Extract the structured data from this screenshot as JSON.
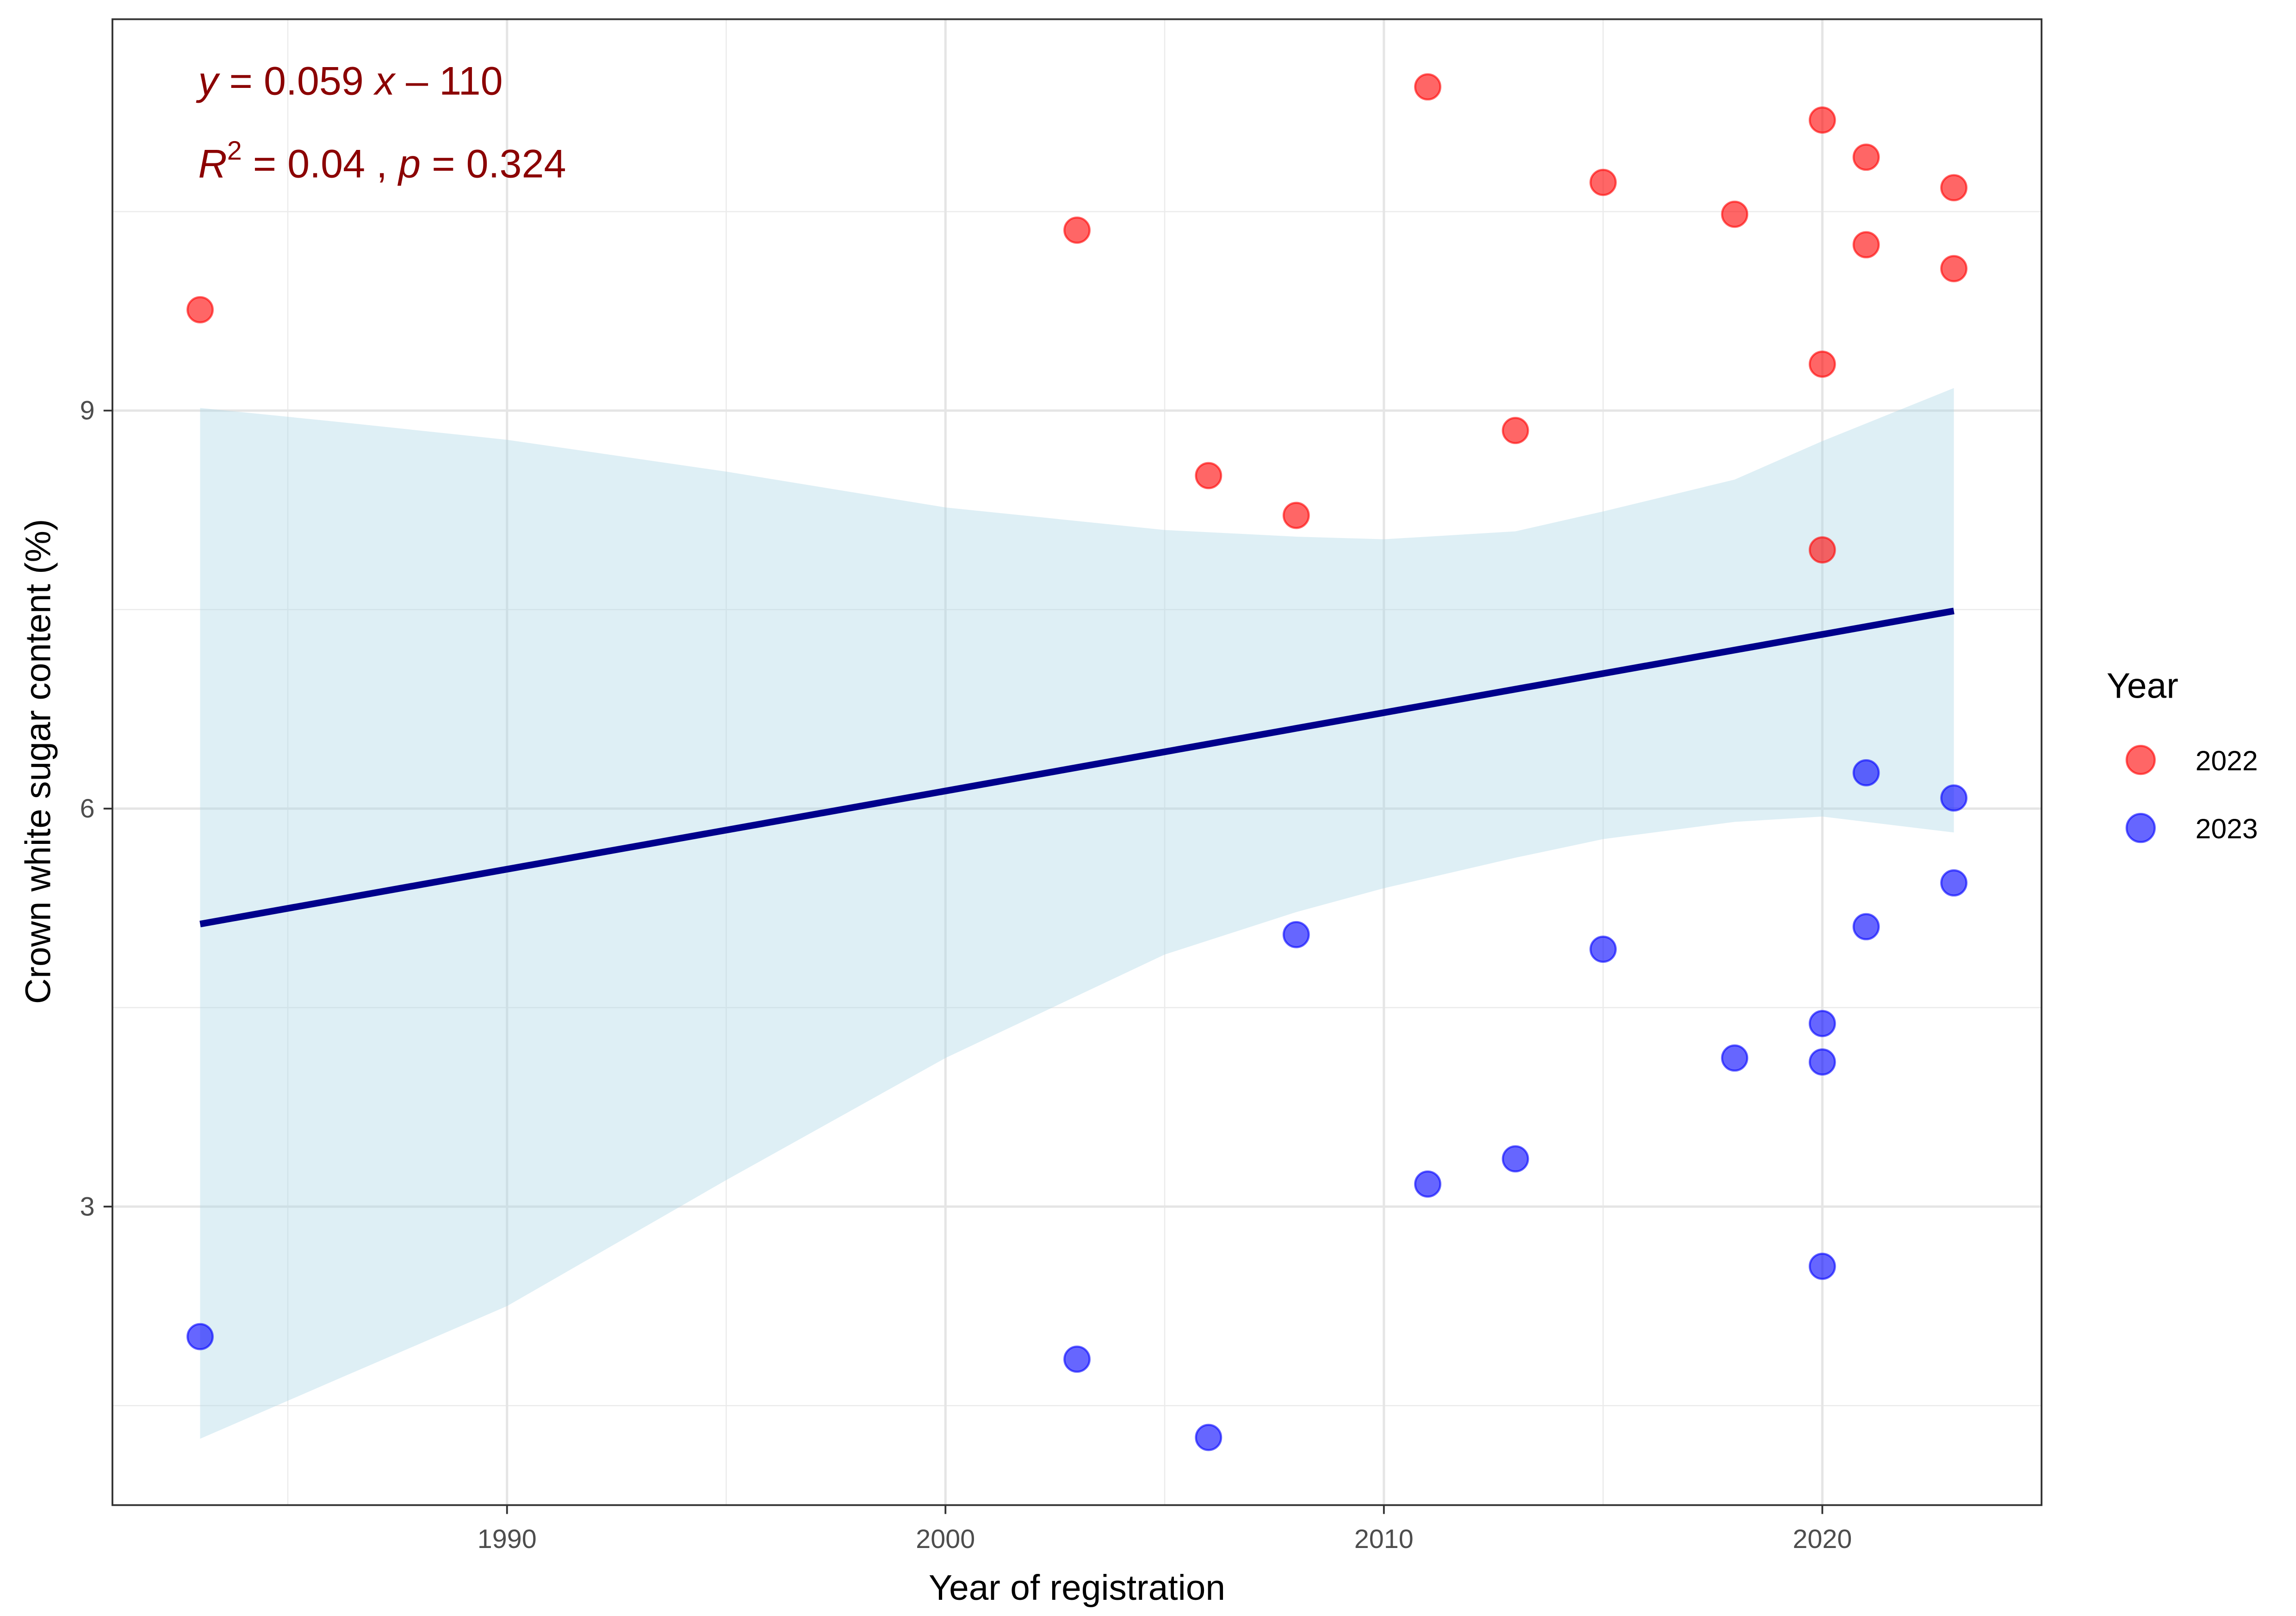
{
  "chart_data": {
    "type": "scatter",
    "title": "",
    "xlabel": "Year of registration",
    "ylabel": "Crown white sugar content (%)",
    "xlim": [
      1981,
      2025
    ],
    "ylim": [
      0.75,
      11.95
    ],
    "x_ticks": [
      1990,
      2000,
      2010,
      2020
    ],
    "x_tick_labels": [
      "1990",
      "2000",
      "2010",
      "2020"
    ],
    "x_minor_ticks": [
      1985,
      1995,
      2005,
      2015
    ],
    "y_ticks": [
      3,
      6,
      9
    ],
    "y_tick_labels": [
      "3",
      "6",
      "9"
    ],
    "y_minor_ticks": [
      1.5,
      4.5,
      7.5,
      10.5
    ],
    "grid": true,
    "legend": {
      "title": "Year",
      "position": "right",
      "entries": [
        {
          "label": "2022",
          "color": "#FF0000"
        },
        {
          "label": "2023",
          "color": "#0000FF"
        }
      ]
    },
    "series": [
      {
        "name": "2022",
        "color": "#FF0000",
        "points": [
          {
            "x": 1983,
            "y": 9.76
          },
          {
            "x": 2003,
            "y": 10.36
          },
          {
            "x": 2006,
            "y": 8.51
          },
          {
            "x": 2008,
            "y": 8.21
          },
          {
            "x": 2011,
            "y": 11.44
          },
          {
            "x": 2013,
            "y": 8.85
          },
          {
            "x": 2015,
            "y": 10.72
          },
          {
            "x": 2018,
            "y": 10.48
          },
          {
            "x": 2020,
            "y": 11.19
          },
          {
            "x": 2020,
            "y": 9.35
          },
          {
            "x": 2020,
            "y": 7.95
          },
          {
            "x": 2021,
            "y": 10.91
          },
          {
            "x": 2021,
            "y": 10.25
          },
          {
            "x": 2023,
            "y": 10.68
          },
          {
            "x": 2023,
            "y": 10.07
          }
        ]
      },
      {
        "name": "2023",
        "color": "#0000FF",
        "points": [
          {
            "x": 1983,
            "y": 2.02
          },
          {
            "x": 2003,
            "y": 1.85
          },
          {
            "x": 2006,
            "y": 1.26
          },
          {
            "x": 2008,
            "y": 5.05
          },
          {
            "x": 2011,
            "y": 3.17
          },
          {
            "x": 2013,
            "y": 3.36
          },
          {
            "x": 2015,
            "y": 4.94
          },
          {
            "x": 2018,
            "y": 4.12
          },
          {
            "x": 2020,
            "y": 4.38
          },
          {
            "x": 2020,
            "y": 4.09
          },
          {
            "x": 2020,
            "y": 2.55
          },
          {
            "x": 2021,
            "y": 6.27
          },
          {
            "x": 2021,
            "y": 5.11
          },
          {
            "x": 2023,
            "y": 6.08
          },
          {
            "x": 2023,
            "y": 5.44
          }
        ]
      }
    ],
    "regression": {
      "color": "#00008B",
      "x": [
        1983,
        2023
      ],
      "y": [
        5.13,
        7.49
      ],
      "ci_color": "#ADD8E6",
      "ci_band": {
        "x": [
          1983,
          1986,
          1990,
          1995,
          2000,
          2005,
          2008,
          2010,
          2013,
          2015,
          2018,
          2020,
          2023
        ],
        "upper": [
          9.02,
          8.92,
          8.78,
          8.54,
          8.27,
          8.1,
          8.05,
          8.03,
          8.09,
          8.24,
          8.48,
          8.77,
          9.17
        ],
        "lower": [
          1.25,
          1.68,
          2.25,
          3.2,
          4.12,
          4.9,
          5.22,
          5.4,
          5.63,
          5.77,
          5.9,
          5.94,
          5.82
        ]
      }
    },
    "annotations": {
      "color": "#8B0000",
      "equation": {
        "y_var": "y",
        "eq": " = 0.059 ",
        "x_var": "x",
        "rest": " – 110"
      },
      "stats": {
        "r_var": "R",
        "r_sup": "2",
        "r_val": " = 0.04 , ",
        "p_var": "p",
        "p_val": " = 0.324"
      }
    }
  }
}
